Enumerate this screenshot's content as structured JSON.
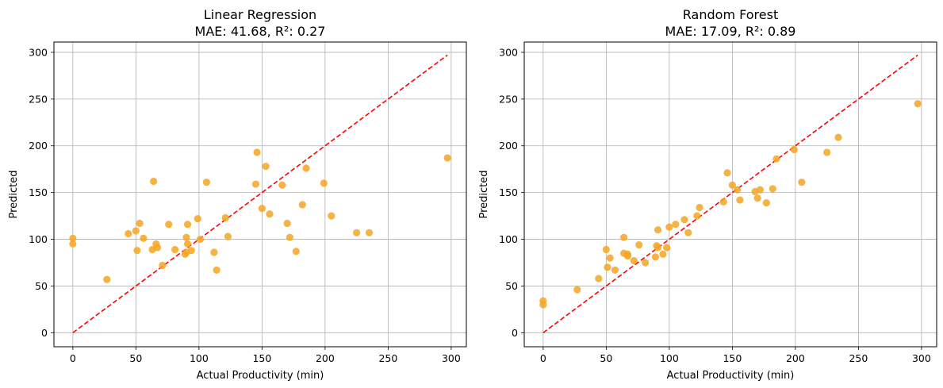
{
  "chart_data": [
    {
      "type": "scatter",
      "title_line1": "Linear Regression",
      "title_line2": "MAE: 41.68, R²: 0.27",
      "xlabel": "Actual Productivity (min)",
      "ylabel": "Predicted",
      "xlim": [
        -15,
        312
      ],
      "ylim": [
        -15,
        311
      ],
      "xticks": [
        0,
        50,
        100,
        150,
        200,
        250,
        300
      ],
      "yticks": [
        0,
        50,
        100,
        150,
        200,
        250,
        300
      ],
      "grid": true,
      "point_color": "#f5a623",
      "reference_line": {
        "from": [
          0,
          0
        ],
        "to": [
          297,
          297
        ],
        "color": "#ff0000",
        "style": "dashed"
      },
      "points": [
        [
          0,
          101
        ],
        [
          0,
          95
        ],
        [
          27,
          57
        ],
        [
          44,
          106
        ],
        [
          50,
          109
        ],
        [
          51,
          88
        ],
        [
          53,
          117
        ],
        [
          56,
          101
        ],
        [
          63,
          89
        ],
        [
          64,
          162
        ],
        [
          66,
          95
        ],
        [
          67,
          91
        ],
        [
          71,
          72
        ],
        [
          76,
          116
        ],
        [
          81,
          89
        ],
        [
          89,
          84
        ],
        [
          90,
          86
        ],
        [
          90,
          102
        ],
        [
          91,
          95
        ],
        [
          91,
          116
        ],
        [
          94,
          88
        ],
        [
          99,
          122
        ],
        [
          101,
          100
        ],
        [
          106,
          161
        ],
        [
          112,
          86
        ],
        [
          114,
          67
        ],
        [
          121,
          123
        ],
        [
          123,
          103
        ],
        [
          145,
          159
        ],
        [
          146,
          193
        ],
        [
          150,
          133
        ],
        [
          153,
          178
        ],
        [
          156,
          127
        ],
        [
          166,
          158
        ],
        [
          170,
          117
        ],
        [
          172,
          102
        ],
        [
          177,
          87
        ],
        [
          182,
          137
        ],
        [
          185,
          176
        ],
        [
          199,
          160
        ],
        [
          205,
          125
        ],
        [
          225,
          107
        ],
        [
          235,
          107
        ],
        [
          297,
          187
        ]
      ]
    },
    {
      "type": "scatter",
      "title_line1": "Random Forest",
      "title_line2": "MAE: 17.09, R²: 0.89",
      "xlabel": "Actual Productivity (min)",
      "ylabel": "Predicted",
      "xlim": [
        -15,
        312
      ],
      "ylim": [
        -15,
        311
      ],
      "xticks": [
        0,
        50,
        100,
        150,
        200,
        250,
        300
      ],
      "yticks": [
        0,
        50,
        100,
        150,
        200,
        250,
        300
      ],
      "grid": true,
      "point_color": "#f5a623",
      "reference_line": {
        "from": [
          0,
          0
        ],
        "to": [
          297,
          297
        ],
        "color": "#ff0000",
        "style": "dashed"
      },
      "points": [
        [
          0,
          34
        ],
        [
          0,
          30
        ],
        [
          27,
          46
        ],
        [
          44,
          58
        ],
        [
          50,
          89
        ],
        [
          51,
          70
        ],
        [
          53,
          80
        ],
        [
          57,
          67
        ],
        [
          64,
          102
        ],
        [
          64,
          85
        ],
        [
          67,
          84
        ],
        [
          67,
          82
        ],
        [
          72,
          77
        ],
        [
          76,
          94
        ],
        [
          81,
          75
        ],
        [
          89,
          81
        ],
        [
          90,
          93
        ],
        [
          91,
          91
        ],
        [
          91,
          110
        ],
        [
          95,
          84
        ],
        [
          98,
          91
        ],
        [
          100,
          113
        ],
        [
          105,
          116
        ],
        [
          112,
          121
        ],
        [
          115,
          107
        ],
        [
          122,
          125
        ],
        [
          124,
          134
        ],
        [
          143,
          140
        ],
        [
          146,
          171
        ],
        [
          150,
          158
        ],
        [
          154,
          153
        ],
        [
          156,
          142
        ],
        [
          168,
          151
        ],
        [
          170,
          144
        ],
        [
          172,
          153
        ],
        [
          177,
          139
        ],
        [
          182,
          154
        ],
        [
          185,
          186
        ],
        [
          199,
          196
        ],
        [
          205,
          161
        ],
        [
          225,
          193
        ],
        [
          234,
          209
        ],
        [
          297,
          245
        ]
      ]
    }
  ]
}
